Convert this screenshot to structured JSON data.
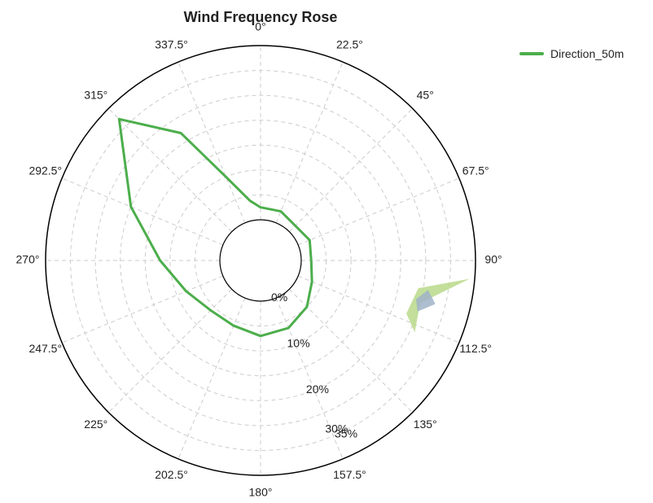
{
  "chart_data": {
    "type": "polar-line",
    "title": "Wind Frequency Rose",
    "legend_position": "top-right",
    "grid": true,
    "radial_axis": {
      "range": [
        0,
        35
      ],
      "ticks": [
        0,
        10,
        20,
        30,
        35
      ],
      "tick_labels": [
        "0%",
        "10%",
        "20%",
        "30%",
        "35%"
      ],
      "label_angle_deg": 157.5
    },
    "angular_axis": {
      "direction": "clockwise",
      "zero": "top",
      "ticks": [
        0,
        22.5,
        45,
        67.5,
        90,
        112.5,
        135,
        157.5,
        180,
        202.5,
        225,
        247.5,
        270,
        292.5,
        315,
        337.5
      ],
      "tick_labels": [
        "0°",
        "22.5°",
        "45°",
        "67.5°",
        "90°",
        "112.5°",
        "135°",
        "157.5°",
        "180°",
        "202.5°",
        "225°",
        "247.5°",
        "270°",
        "292.5°",
        "315°",
        "337.5°"
      ]
    },
    "series": [
      {
        "name": "Direction_50m",
        "color": "#4cae4c",
        "points": [
          {
            "theta": 315,
            "r": 32
          },
          {
            "theta": 328,
            "r": 22
          },
          {
            "theta": 337.5,
            "r": 10
          },
          {
            "theta": 350,
            "r": 4
          },
          {
            "theta": 0,
            "r": 2.5
          },
          {
            "theta": 22.5,
            "r": 2.5
          },
          {
            "theta": 67.5,
            "r": 2.5
          },
          {
            "theta": 90,
            "r": 2
          },
          {
            "theta": 112.5,
            "r": 3
          },
          {
            "theta": 135,
            "r": 5
          },
          {
            "theta": 157.5,
            "r": 6.5
          },
          {
            "theta": 180,
            "r": 7
          },
          {
            "theta": 202.5,
            "r": 6
          },
          {
            "theta": 225,
            "r": 6
          },
          {
            "theta": 247.5,
            "r": 8
          },
          {
            "theta": 270,
            "r": 12
          },
          {
            "theta": 292.5,
            "r": 20
          },
          {
            "theta": 315,
            "r": 32
          }
        ]
      }
    ],
    "artifacts": [
      {
        "color": "#b8d98a",
        "points": [
          {
            "theta": 95,
            "r": 34
          },
          {
            "theta": 105,
            "r": 25
          },
          {
            "theta": 115,
            "r": 26
          },
          {
            "theta": 110,
            "r": 23
          },
          {
            "theta": 100,
            "r": 24
          }
        ]
      },
      {
        "color": "#9fb3c8",
        "points": [
          {
            "theta": 100,
            "r": 26
          },
          {
            "theta": 104,
            "r": 24
          },
          {
            "theta": 108,
            "r": 25
          },
          {
            "theta": 104,
            "r": 28
          }
        ]
      }
    ]
  }
}
